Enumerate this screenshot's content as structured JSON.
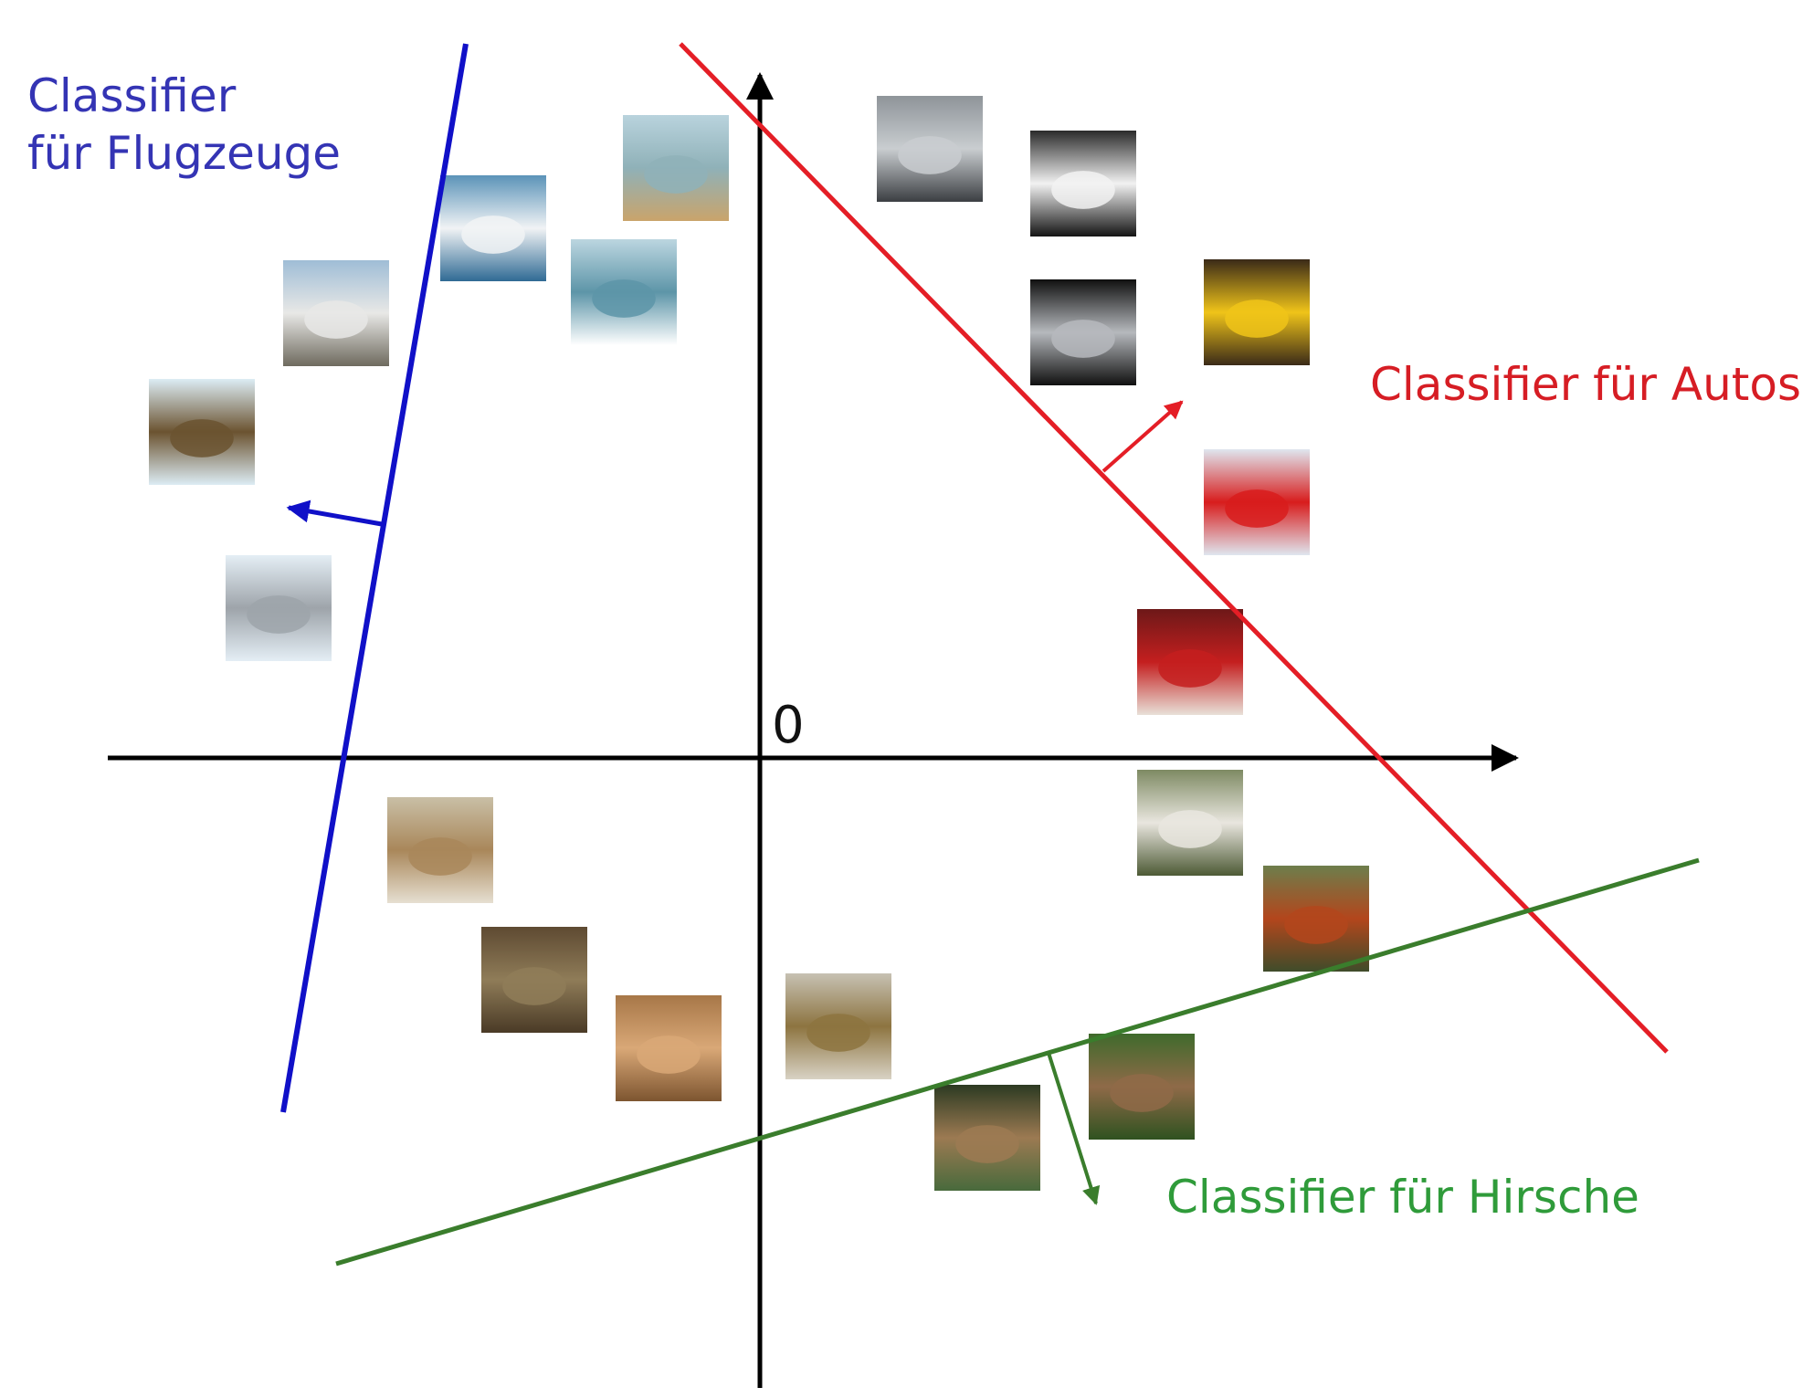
{
  "origin_label": "0",
  "classifiers": {
    "airplane": {
      "line1": "Classifier",
      "line2": "für Flugzeuge",
      "color": "#1010c8",
      "text_color": "#3434b4"
    },
    "car": {
      "text": "Classifier für Autos",
      "color": "#e41e26",
      "text_color": "#d61d24"
    },
    "deer": {
      "text": "Classifier für Hirsche",
      "color": "#3a7d2c",
      "text_color": "#2f9b3a"
    }
  },
  "thumbnails": [
    {
      "id": "ship-harbor",
      "category": "ship",
      "colors": [
        "#b9d3dd",
        "#8fb1b8",
        "#c9a46b"
      ]
    },
    {
      "id": "yacht",
      "category": "ship",
      "colors": [
        "#5b93b8",
        "#f1f3f5",
        "#2f6a94"
      ]
    },
    {
      "id": "speedboat",
      "category": "ship",
      "colors": [
        "#bcd6e0",
        "#5d95a8",
        "#ffffff"
      ]
    },
    {
      "id": "jet-ground",
      "category": "airplane",
      "colors": [
        "#9fbdd6",
        "#e8e8e6",
        "#6e6a5e"
      ]
    },
    {
      "id": "fighter-jet",
      "category": "airplane",
      "colors": [
        "#dcecf4",
        "#6b5330",
        "#dcecf4"
      ]
    },
    {
      "id": "airliner",
      "category": "airplane",
      "colors": [
        "#e4eef5",
        "#9ea4aa",
        "#e4eef5"
      ]
    },
    {
      "id": "silver-suv",
      "category": "car",
      "colors": [
        "#8e9499",
        "#c9cdd0",
        "#3b3e42"
      ]
    },
    {
      "id": "white-bmw",
      "category": "car",
      "colors": [
        "#2b2b2b",
        "#f2f2f2",
        "#141414"
      ]
    },
    {
      "id": "silver-car-rear",
      "category": "car",
      "colors": [
        "#101010",
        "#b6b9bd",
        "#101010"
      ]
    },
    {
      "id": "yellow-convertible",
      "category": "car",
      "colors": [
        "#3a2a18",
        "#f0c419",
        "#3a2a18"
      ]
    },
    {
      "id": "red-sportscar",
      "category": "car",
      "colors": [
        "#dfe6ef",
        "#d81c1c",
        "#dfe6ef"
      ]
    },
    {
      "id": "fire-truck",
      "category": "truck",
      "colors": [
        "#6d1818",
        "#c41f1f",
        "#e8e0d8"
      ]
    },
    {
      "id": "white-rooster",
      "category": "bird",
      "colors": [
        "#7e8a63",
        "#e9e6df",
        "#4d5a35"
      ]
    },
    {
      "id": "red-rooster",
      "category": "bird",
      "colors": [
        "#6d7e4c",
        "#b3461c",
        "#3f4c2a"
      ]
    },
    {
      "id": "cat",
      "category": "cat",
      "colors": [
        "#c9bfa6",
        "#a9875a",
        "#e6dfd1"
      ]
    },
    {
      "id": "frog-1",
      "category": "frog",
      "colors": [
        "#5e4a32",
        "#8f7c58",
        "#4a3a26"
      ]
    },
    {
      "id": "frog-2",
      "category": "frog",
      "colors": [
        "#a77748",
        "#d9a877",
        "#7d5530"
      ]
    },
    {
      "id": "sparrow",
      "category": "bird",
      "colors": [
        "#c7c1b3",
        "#8d7440",
        "#d8d2c4"
      ]
    },
    {
      "id": "deer-pair",
      "category": "deer",
      "colors": [
        "#2c3a22",
        "#9c7a52",
        "#486a3c"
      ]
    },
    {
      "id": "deer-bush",
      "category": "deer",
      "colors": [
        "#3f6a2c",
        "#8f6a48",
        "#2f5220"
      ]
    }
  ]
}
